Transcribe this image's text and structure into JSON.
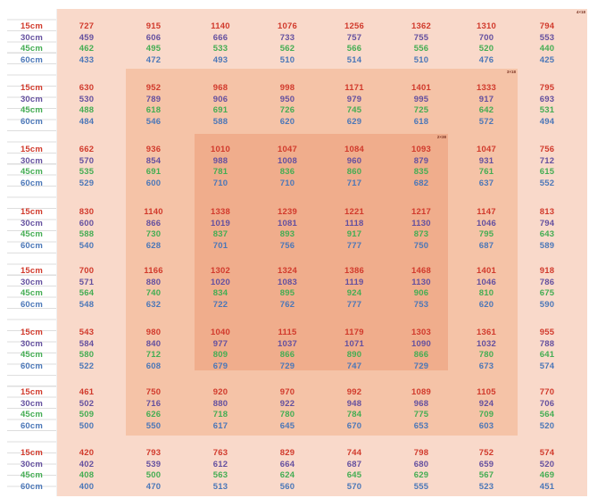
{
  "colors": {
    "outer_zone": "#f9d9ca",
    "mid_zone": "#f5c3a7",
    "inner_zone": "#f0ad8c",
    "rows": [
      "#d13a2c",
      "#64509f",
      "#44ad53",
      "#4b77b8"
    ],
    "grid_line": "#dedede",
    "annotation": "#7c3626"
  },
  "annotations": [
    "4×18",
    "3×18",
    "2×38"
  ],
  "chart_data": {
    "type": "heatmap",
    "title": "",
    "row_labels": [
      "15cm",
      "30cm",
      "45cm",
      "60cm"
    ],
    "num_column_groups": 8,
    "zones": [
      {
        "name": "outer",
        "color": "#f9d9ca"
      },
      {
        "name": "middle",
        "color": "#f5c3a7"
      },
      {
        "name": "inner",
        "color": "#f0ad8c"
      }
    ],
    "groups": [
      [
        [
          727,
          915,
          1140,
          1076,
          1256,
          1362,
          1310,
          794
        ],
        [
          459,
          606,
          666,
          733,
          757,
          755,
          700,
          553
        ],
        [
          462,
          495,
          533,
          562,
          566,
          556,
          520,
          440
        ],
        [
          433,
          472,
          493,
          510,
          514,
          510,
          476,
          425
        ]
      ],
      [
        [
          630,
          952,
          968,
          998,
          1171,
          1401,
          1333,
          795
        ],
        [
          530,
          789,
          906,
          950,
          979,
          995,
          917,
          693
        ],
        [
          488,
          618,
          691,
          726,
          745,
          725,
          642,
          531
        ],
        [
          484,
          546,
          588,
          620,
          629,
          618,
          572,
          494
        ]
      ],
      [
        [
          662,
          936,
          1010,
          1047,
          1084,
          1093,
          1047,
          756
        ],
        [
          570,
          854,
          988,
          1008,
          960,
          879,
          931,
          712
        ],
        [
          535,
          691,
          781,
          836,
          860,
          835,
          761,
          615
        ],
        [
          529,
          600,
          710,
          710,
          717,
          682,
          637,
          552
        ]
      ],
      [
        [
          830,
          1140,
          1338,
          1239,
          1221,
          1217,
          1147,
          813
        ],
        [
          600,
          866,
          1019,
          1081,
          1118,
          1130,
          1046,
          794
        ],
        [
          588,
          730,
          837,
          893,
          917,
          873,
          795,
          643
        ],
        [
          540,
          628,
          701,
          756,
          777,
          750,
          687,
          589
        ]
      ],
      [
        [
          700,
          1166,
          1302,
          1324,
          1386,
          1468,
          1401,
          918
        ],
        [
          571,
          880,
          1020,
          1083,
          1119,
          1130,
          1046,
          786
        ],
        [
          564,
          740,
          834,
          895,
          924,
          906,
          810,
          675
        ],
        [
          548,
          632,
          722,
          762,
          777,
          753,
          620,
          590
        ]
      ],
      [
        [
          543,
          980,
          1040,
          1115,
          1179,
          1303,
          1361,
          955
        ],
        [
          584,
          840,
          977,
          1037,
          1071,
          1090,
          1032,
          788
        ],
        [
          580,
          712,
          809,
          866,
          890,
          866,
          780,
          641
        ],
        [
          522,
          608,
          679,
          729,
          747,
          729,
          673,
          574
        ]
      ],
      [
        [
          461,
          750,
          920,
          970,
          992,
          1089,
          1105,
          770
        ],
        [
          502,
          716,
          880,
          922,
          948,
          968,
          924,
          706
        ],
        [
          509,
          626,
          718,
          780,
          784,
          775,
          709,
          564
        ],
        [
          500,
          550,
          617,
          645,
          670,
          653,
          603,
          520
        ]
      ],
      [
        [
          420,
          793,
          763,
          829,
          744,
          798,
          752,
          574
        ],
        [
          402,
          539,
          612,
          664,
          687,
          680,
          659,
          520
        ],
        [
          408,
          500,
          563,
          624,
          645,
          629,
          567,
          469
        ],
        [
          400,
          470,
          513,
          560,
          570,
          555,
          523,
          451
        ]
      ]
    ]
  }
}
